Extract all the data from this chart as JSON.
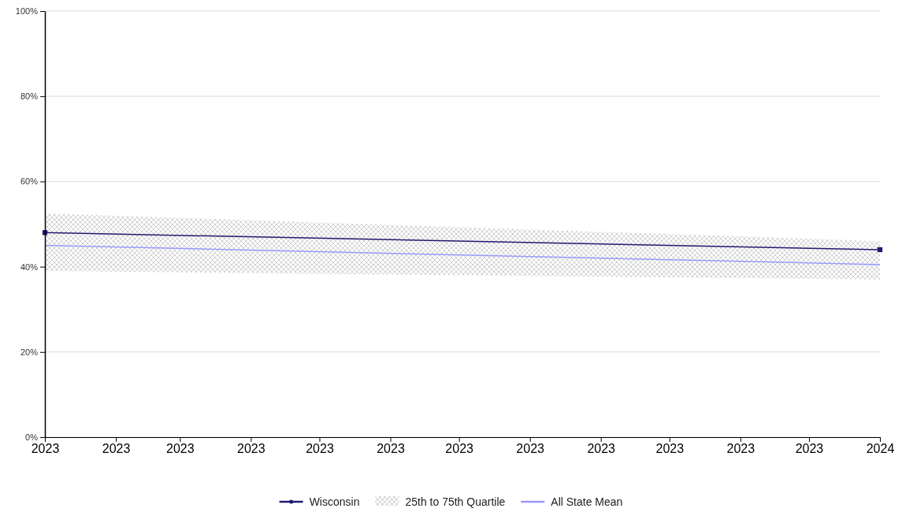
{
  "chart_data": {
    "type": "line",
    "x": [
      "2023-01",
      "2024-01"
    ],
    "xlim": [
      "2023-01",
      "2024-01"
    ],
    "xticks": [
      {
        "value": "2023-01",
        "label": "2023"
      },
      {
        "value": "2023-02",
        "label": "2023"
      },
      {
        "value": "2023-03",
        "label": "2023"
      },
      {
        "value": "2023-04",
        "label": "2023"
      },
      {
        "value": "2023-05",
        "label": "2023"
      },
      {
        "value": "2023-06",
        "label": "2023"
      },
      {
        "value": "2023-07",
        "label": "2023"
      },
      {
        "value": "2023-08",
        "label": "2023"
      },
      {
        "value": "2023-09",
        "label": "2023"
      },
      {
        "value": "2023-10",
        "label": "2023"
      },
      {
        "value": "2023-11",
        "label": "2023"
      },
      {
        "value": "2023-12",
        "label": "2023"
      },
      {
        "value": "2024-01",
        "label": "2024"
      }
    ],
    "ylim": [
      0,
      100
    ],
    "yticks": [
      {
        "value": 0,
        "label": "0%"
      },
      {
        "value": 20,
        "label": "20%"
      },
      {
        "value": 40,
        "label": "40%"
      },
      {
        "value": 60,
        "label": "60%"
      },
      {
        "value": 80,
        "label": "80%"
      },
      {
        "value": 100,
        "label": "100%"
      }
    ],
    "grid": "y",
    "legend": "bottom",
    "series": [
      {
        "name": "Wisconsin",
        "color": "#1f1a6e",
        "values": [
          48,
          44
        ],
        "marker": "square"
      },
      {
        "name": "25th to 75th Quartile",
        "type": "area",
        "color": "#c8c8c8",
        "values": [
          null,
          null
        ],
        "lower": [
          39,
          37
        ],
        "upper": [
          52.5,
          46
        ]
      },
      {
        "name": "All State Mean",
        "color": "#9999ff",
        "values": [
          45,
          40.5
        ],
        "marker": "none"
      }
    ]
  }
}
